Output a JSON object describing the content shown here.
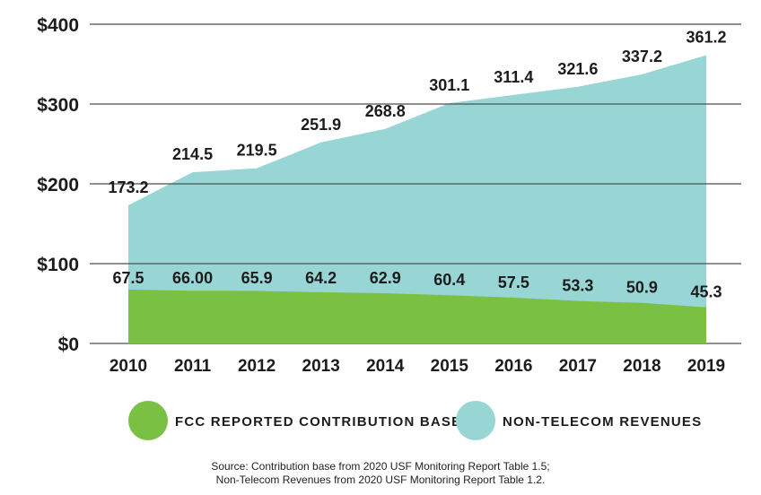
{
  "colors": {
    "base": "#7ac143",
    "non_telecom": "#98d6d5",
    "grid": "#222222",
    "text": "#1c1c1c"
  },
  "chart_data": {
    "type": "area",
    "x": [
      "2010",
      "2011",
      "2012",
      "2013",
      "2014",
      "2015",
      "2016",
      "2017",
      "2018",
      "2019"
    ],
    "ylim": [
      0,
      400
    ],
    "yticks": [
      0,
      100,
      200,
      300,
      400
    ],
    "ytick_labels": [
      "$0",
      "$100",
      "$200",
      "$300",
      "$400"
    ],
    "grid": true,
    "legend_position": "bottom",
    "stacked": false,
    "series": [
      {
        "name": "FCC REPORTED CONTRIBUTION BASE",
        "color": "#7ac143",
        "values": [
          67.5,
          66.0,
          65.9,
          64.2,
          62.9,
          60.4,
          57.5,
          53.3,
          50.9,
          45.3
        ],
        "labels": [
          "67.5",
          "66.00",
          "65.9",
          "64.2",
          "62.9",
          "60.4",
          "57.5",
          "53.3",
          "50.9",
          "45.3"
        ]
      },
      {
        "name": "NON-TELECOM REVENUES",
        "color": "#98d6d5",
        "values": [
          173.2,
          214.5,
          219.5,
          251.9,
          268.8,
          301.1,
          311.4,
          321.6,
          337.2,
          361.2
        ],
        "labels": [
          "173.2",
          "214.5",
          "219.5",
          "251.9",
          "268.8",
          "301.1",
          "311.4",
          "321.6",
          "337.2",
          "361.2"
        ]
      }
    ]
  },
  "source": {
    "line1": "Source: Contribution base from 2020 USF Monitoring Report Table 1.5;",
    "line2": "Non-Telecom Revenues from 2020 USF Monitoring Report Table 1.2."
  }
}
